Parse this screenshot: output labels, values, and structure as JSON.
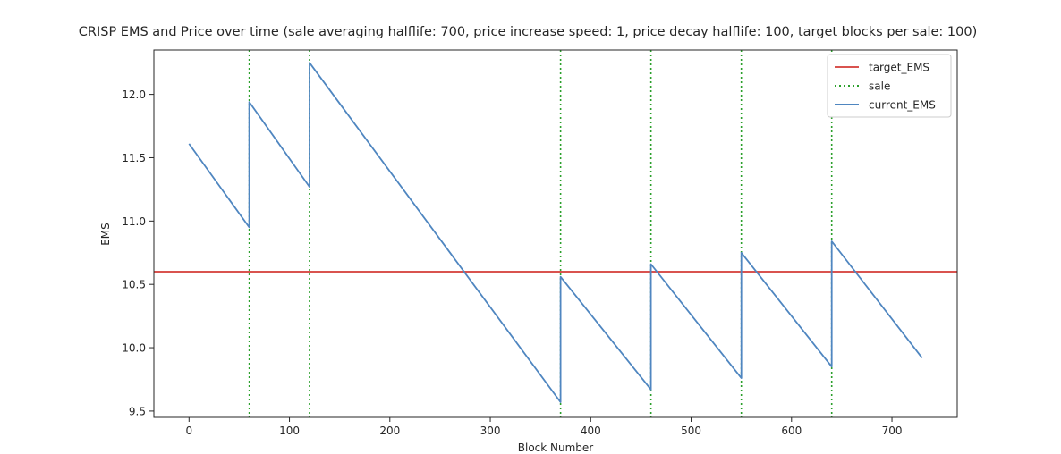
{
  "chart_data": {
    "type": "line",
    "title": "CRISP EMS and Price over time (sale averaging halflife: 700, price increase speed: 1, price decay halflife: 100, target blocks per sale: 100)",
    "xlabel": "Block Number",
    "ylabel": "EMS",
    "xlim": [
      -35,
      765
    ],
    "ylim": [
      9.45,
      12.35
    ],
    "xticks": [
      0,
      100,
      200,
      300,
      400,
      500,
      600,
      700
    ],
    "yticks": [
      9.5,
      10.0,
      10.5,
      11.0,
      11.5,
      12.0
    ],
    "ytick_labels": [
      "9.5",
      "10.0",
      "10.5",
      "11.0",
      "11.5",
      "12.0"
    ],
    "grid": false,
    "legend_position": "top-right",
    "series": [
      {
        "name": "target_EMS",
        "style": "solid",
        "color": "#d9534f",
        "y": 10.6
      },
      {
        "name": "sale",
        "style": "dotted",
        "color": "#2ca02c",
        "x": [
          60,
          120,
          370,
          460,
          550,
          640
        ]
      },
      {
        "name": "current_EMS",
        "style": "solid",
        "color": "#4f86c0",
        "points": [
          [
            0,
            11.61
          ],
          [
            60,
            10.95
          ],
          [
            60,
            11.94
          ],
          [
            120,
            11.27
          ],
          [
            120,
            12.25
          ],
          [
            370,
            9.57
          ],
          [
            370,
            10.56
          ],
          [
            460,
            9.67
          ],
          [
            460,
            10.66
          ],
          [
            550,
            9.76
          ],
          [
            550,
            10.75
          ],
          [
            640,
            9.85
          ],
          [
            640,
            10.84
          ],
          [
            730,
            9.92
          ]
        ]
      }
    ]
  }
}
